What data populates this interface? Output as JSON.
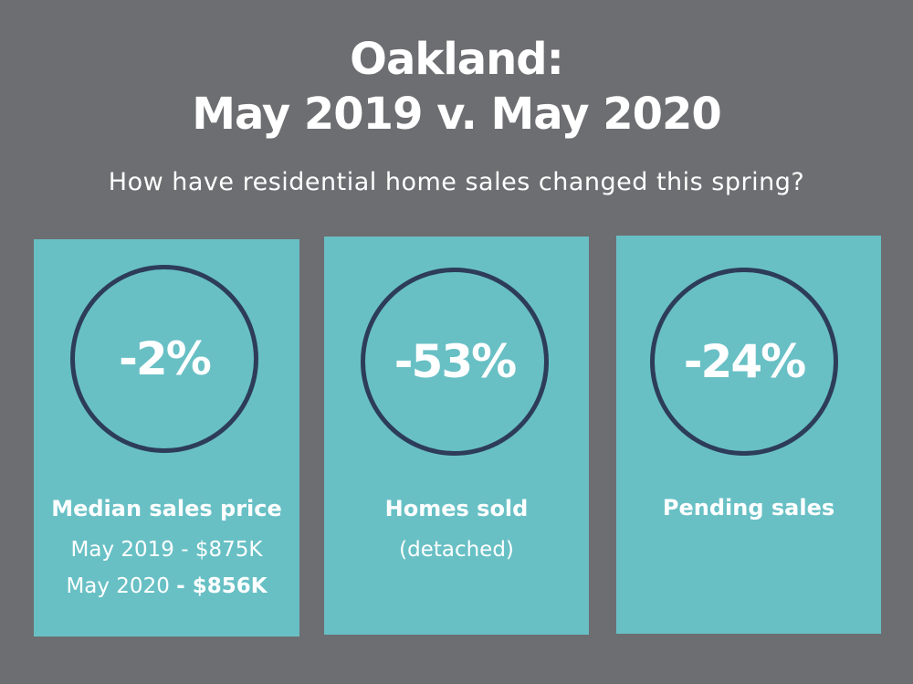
{
  "title": {
    "line1": "Oakland:",
    "line2": "May 2019 v. May 2020"
  },
  "subtitle": "How have residential home sales changed this spring?",
  "colors": {
    "background": "#6d6e71",
    "card": "#68c0c5",
    "ring": "#2d3c5a",
    "text": "#ffffff"
  },
  "cards": [
    {
      "value": "-2%",
      "label": "Median sales price",
      "line_a": "May 2019 - $875K",
      "line_b_prefix": "May 2020 ",
      "line_b_bold": "- $856K"
    },
    {
      "value": "-53%",
      "label": "Homes sold",
      "line_a": "(detached)"
    },
    {
      "value": "-24%",
      "label": "Pending sales"
    }
  ]
}
